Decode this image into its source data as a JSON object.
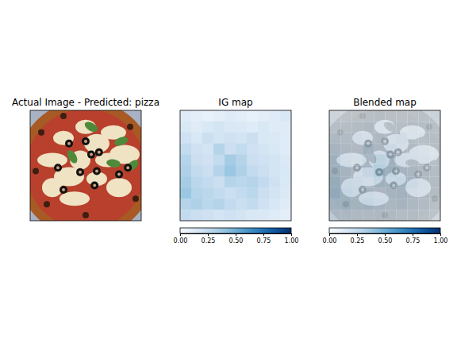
{
  "chart_data": [
    {
      "type": "image",
      "title": "Actual Image - Predicted: pizza",
      "tick_labels": false
    },
    {
      "type": "heatmap",
      "title": "IG map",
      "tick_labels": false,
      "cells": [
        [
          0.12,
          0.1,
          0.08,
          0.1,
          0.12,
          0.1,
          0.08,
          0.1,
          0.12,
          0.15
        ],
        [
          0.15,
          0.12,
          0.15,
          0.18,
          0.15,
          0.14,
          0.12,
          0.15,
          0.12,
          0.12
        ],
        [
          0.2,
          0.15,
          0.22,
          0.18,
          0.2,
          0.18,
          0.22,
          0.15,
          0.14,
          0.12
        ],
        [
          0.25,
          0.2,
          0.18,
          0.3,
          0.22,
          0.25,
          0.2,
          0.18,
          0.15,
          0.12
        ],
        [
          0.3,
          0.22,
          0.2,
          0.25,
          0.35,
          0.3,
          0.22,
          0.2,
          0.18,
          0.14
        ],
        [
          0.32,
          0.25,
          0.22,
          0.3,
          0.38,
          0.32,
          0.25,
          0.22,
          0.18,
          0.15
        ],
        [
          0.35,
          0.28,
          0.25,
          0.22,
          0.3,
          0.28,
          0.3,
          0.25,
          0.2,
          0.15
        ],
        [
          0.38,
          0.3,
          0.28,
          0.25,
          0.22,
          0.25,
          0.28,
          0.22,
          0.18,
          0.14
        ],
        [
          0.3,
          0.32,
          0.28,
          0.3,
          0.25,
          0.22,
          0.25,
          0.2,
          0.16,
          0.12
        ],
        [
          0.25,
          0.22,
          0.2,
          0.18,
          0.2,
          0.18,
          0.15,
          0.14,
          0.12,
          0.1
        ]
      ],
      "colorbar": {
        "range": [
          0,
          1
        ],
        "ticks": [
          {
            "value": 0,
            "label": "0.00"
          },
          {
            "value": 0.25,
            "label": "0.25"
          },
          {
            "value": 0.5,
            "label": "0.50"
          },
          {
            "value": 0.75,
            "label": "0.75"
          },
          {
            "value": 1,
            "label": "1.00"
          }
        ]
      }
    },
    {
      "type": "overlay",
      "title": "Blended map",
      "tick_labels": false,
      "cells": [
        [
          0.12,
          0.1,
          0.08,
          0.1,
          0.12,
          0.1,
          0.08,
          0.1,
          0.12,
          0.15
        ],
        [
          0.15,
          0.12,
          0.15,
          0.18,
          0.15,
          0.14,
          0.12,
          0.15,
          0.12,
          0.12
        ],
        [
          0.2,
          0.15,
          0.22,
          0.18,
          0.2,
          0.18,
          0.22,
          0.15,
          0.14,
          0.12
        ],
        [
          0.25,
          0.2,
          0.18,
          0.3,
          0.22,
          0.25,
          0.2,
          0.18,
          0.15,
          0.12
        ],
        [
          0.3,
          0.22,
          0.2,
          0.25,
          0.35,
          0.3,
          0.22,
          0.2,
          0.18,
          0.14
        ],
        [
          0.32,
          0.25,
          0.22,
          0.3,
          0.38,
          0.32,
          0.25,
          0.22,
          0.18,
          0.15
        ],
        [
          0.35,
          0.28,
          0.25,
          0.22,
          0.3,
          0.28,
          0.3,
          0.25,
          0.2,
          0.15
        ],
        [
          0.38,
          0.3,
          0.28,
          0.25,
          0.22,
          0.25,
          0.28,
          0.22,
          0.18,
          0.14
        ],
        [
          0.3,
          0.32,
          0.28,
          0.3,
          0.25,
          0.22,
          0.25,
          0.2,
          0.16,
          0.12
        ],
        [
          0.25,
          0.22,
          0.2,
          0.18,
          0.2,
          0.18,
          0.15,
          0.14,
          0.12,
          0.1
        ]
      ],
      "colorbar": {
        "range": [
          0,
          1
        ],
        "ticks": [
          {
            "value": 0,
            "label": "0.00"
          },
          {
            "value": 0.25,
            "label": "0.25"
          },
          {
            "value": 0.5,
            "label": "0.50"
          },
          {
            "value": 0.75,
            "label": "0.75"
          },
          {
            "value": 1,
            "label": "1.00"
          }
        ]
      }
    }
  ]
}
